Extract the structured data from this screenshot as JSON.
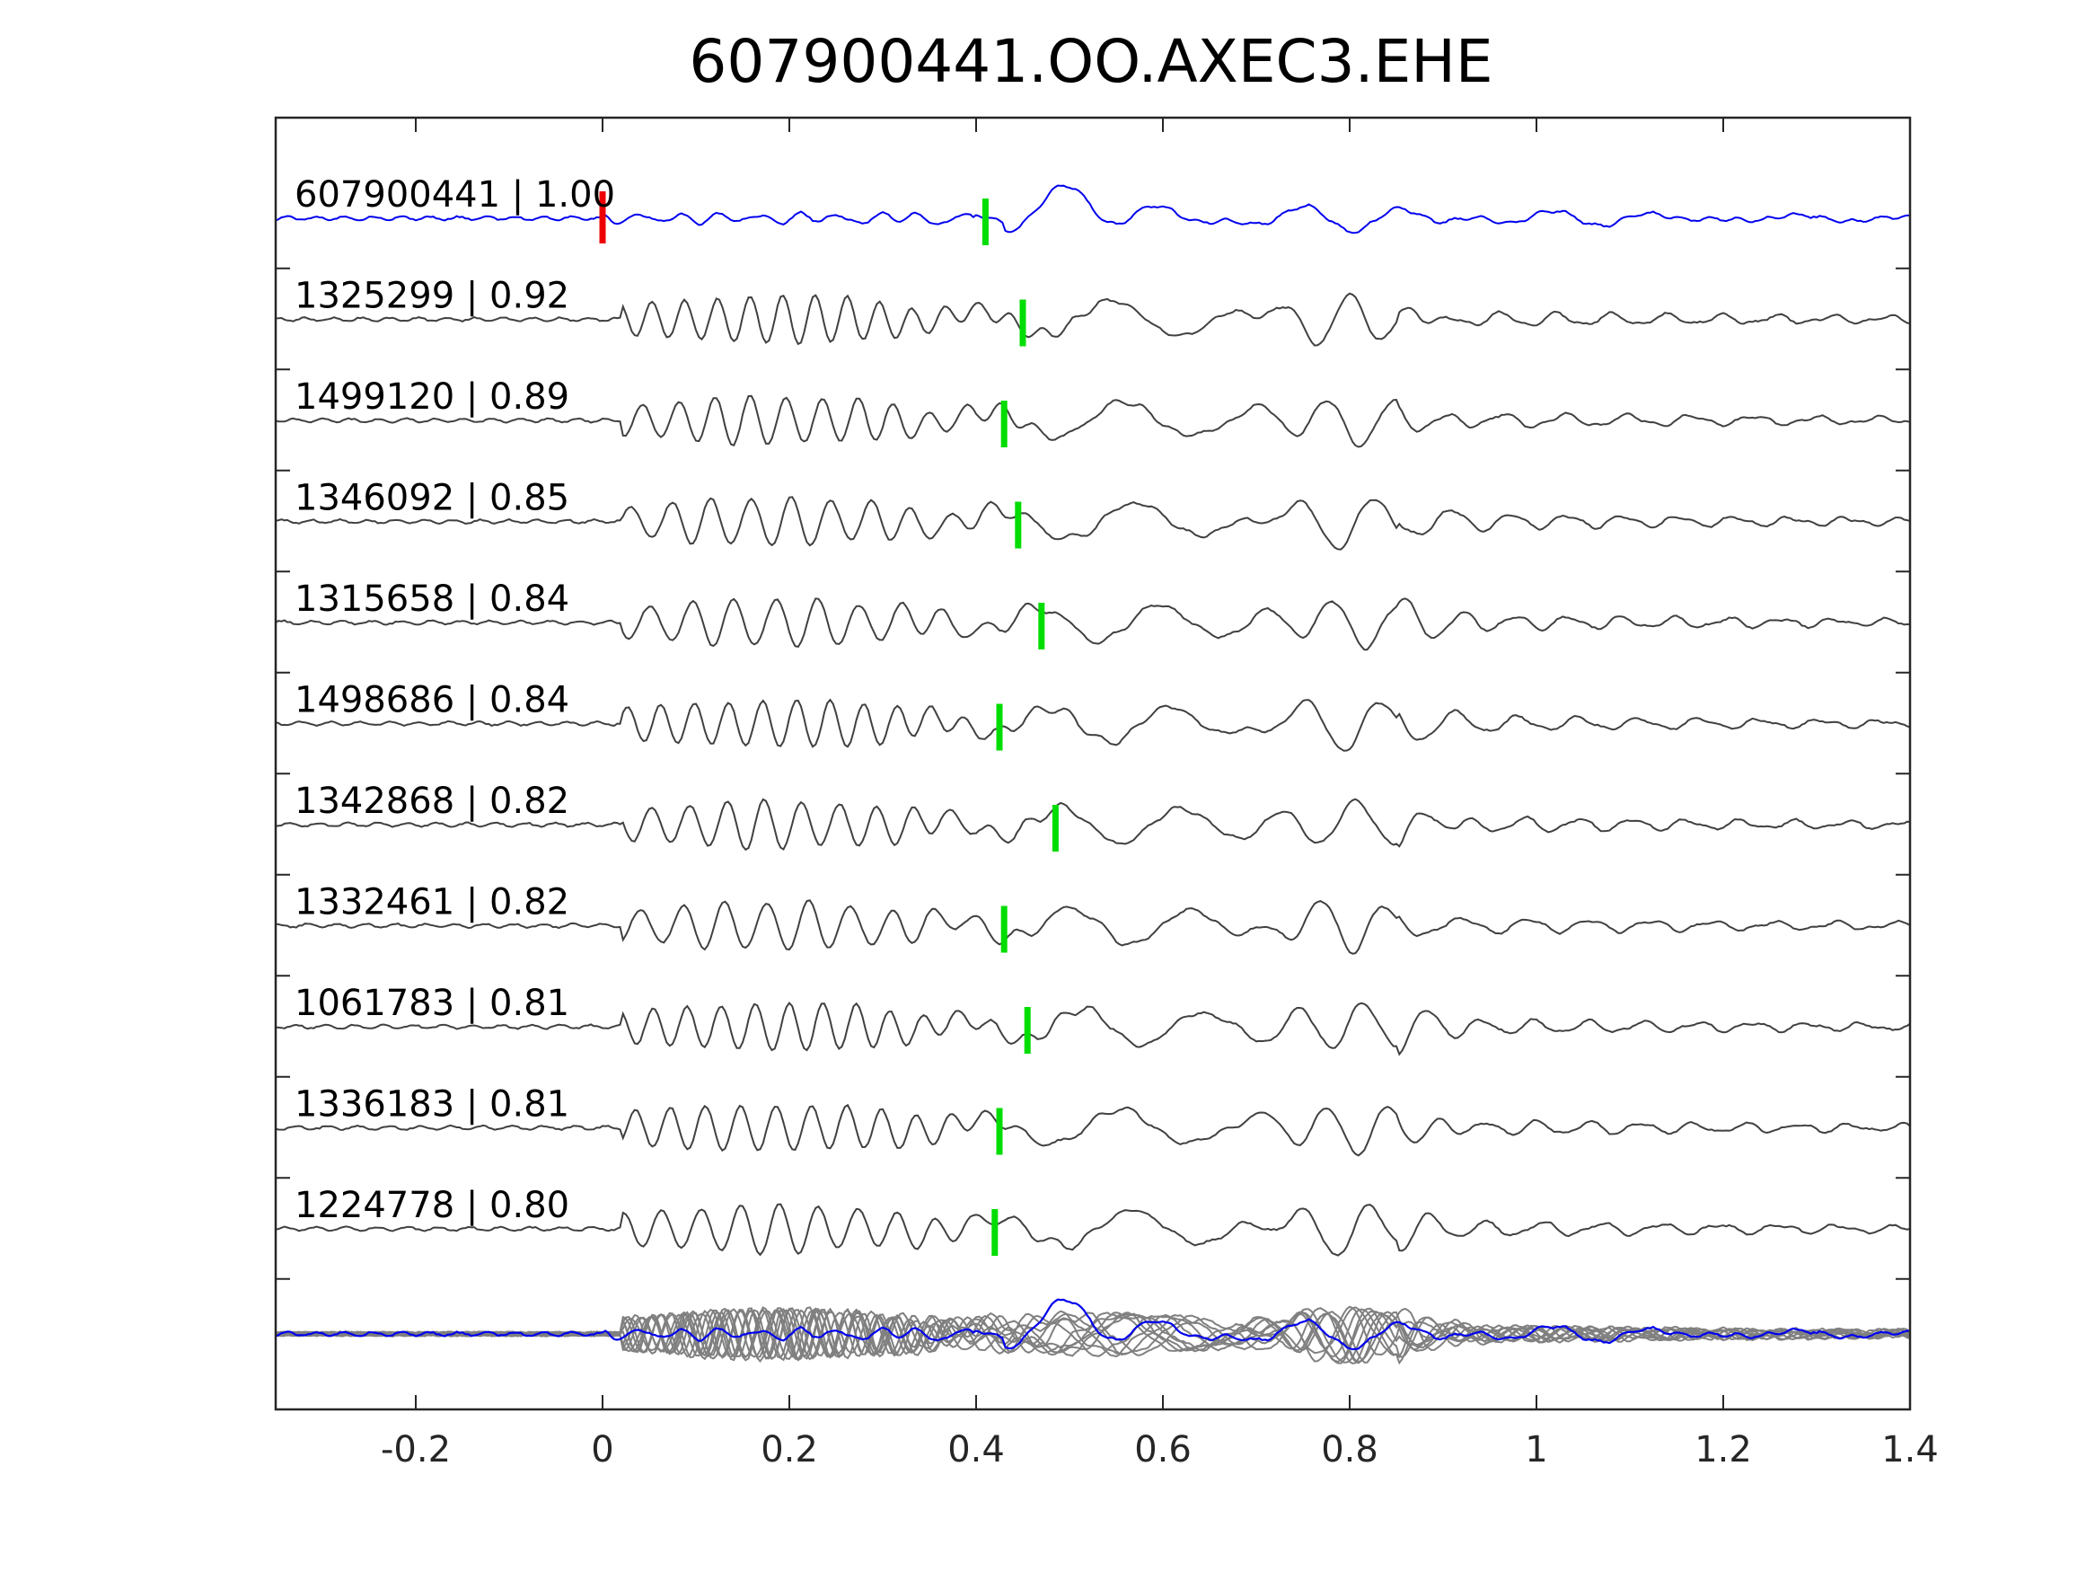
{
  "chart_data": {
    "type": "line",
    "title": "607900441.OO.AXEC3.EHE",
    "xlabel": "",
    "ylabel": "",
    "xlim": [
      -0.35,
      1.4
    ],
    "x_ticks": [
      -0.2,
      0,
      0.2,
      0.4,
      0.6,
      0.8,
      1,
      1.2,
      1.4
    ],
    "x_tick_labels": [
      "-0.2",
      "0",
      "0.2",
      "0.4",
      "0.6",
      "0.8",
      "1",
      "1.2",
      "1.4"
    ],
    "grid": false,
    "colors": {
      "master_trace": "#0000ee",
      "neighbor_trace": "#404040",
      "stack_trace": "#808080",
      "reference_pick": "#ee0000",
      "phase_pick": "#00dd00"
    },
    "reference_pick_time": 0.0,
    "series": [
      {
        "name": "607900441 | 1.00",
        "role": "master",
        "pick": 0.41
      },
      {
        "name": "1325299 | 0.92",
        "role": "neighbor",
        "pick": 0.45
      },
      {
        "name": "1499120 | 0.89",
        "role": "neighbor",
        "pick": 0.43
      },
      {
        "name": "1346092 | 0.85",
        "role": "neighbor",
        "pick": 0.445
      },
      {
        "name": "1315658 | 0.84",
        "role": "neighbor",
        "pick": 0.47
      },
      {
        "name": "1498686 | 0.84",
        "role": "neighbor",
        "pick": 0.425
      },
      {
        "name": "1342868 | 0.82",
        "role": "neighbor",
        "pick": 0.485
      },
      {
        "name": "1332461 | 0.82",
        "role": "neighbor",
        "pick": 0.43
      },
      {
        "name": "1061783 | 0.81",
        "role": "neighbor",
        "pick": 0.455
      },
      {
        "name": "1336183 | 0.81",
        "role": "neighbor",
        "pick": 0.425
      },
      {
        "name": "1224778 | 0.80",
        "role": "neighbor",
        "pick": 0.42
      }
    ]
  }
}
